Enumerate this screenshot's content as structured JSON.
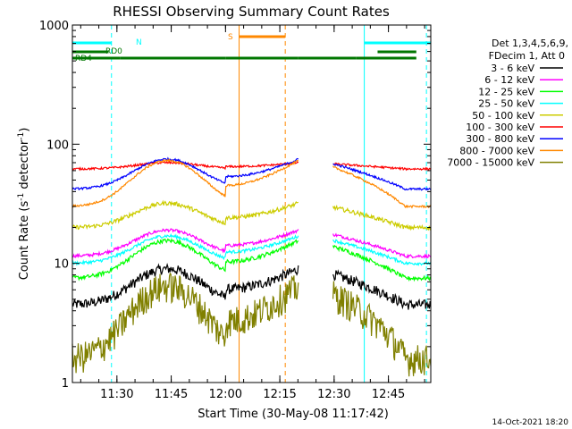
{
  "chart_data": {
    "type": "line",
    "title": "RHESSI Observing Summary Count Rates",
    "xlabel": "Start Time (30-May-08 11:17:42)",
    "ylabel_main": "Count Rate (s",
    "ylabel_sup1": "-1",
    "ylabel_mid": " detector",
    "ylabel_sup2": "-1",
    "ylabel_end": ")",
    "y_scale": "log",
    "ylim": [
      1,
      1000
    ],
    "xlim": [
      "11:17:42",
      "12:56:42"
    ],
    "x_ticks": [
      "11:30",
      "11:45",
      "12:00",
      "12:15",
      "12:30",
      "12:45"
    ],
    "y_ticks": [
      "1",
      "10",
      "100",
      "1000"
    ],
    "grid": false,
    "legend": {
      "position": "right",
      "header": [
        "Det 1,3,4,5,6,9,",
        "FDecim 1, Att 0"
      ]
    },
    "series": [
      {
        "name": "3 - 6 keV",
        "color": "#000000",
        "night_level": 4.5,
        "peak_level": 9.0,
        "noise": 0.1
      },
      {
        "name": "6 - 12 keV",
        "color": "#ff00ff",
        "night_level": 11.5,
        "peak_level": 19.0,
        "noise": 0.03
      },
      {
        "name": "12 - 25 keV",
        "color": "#00ff00",
        "night_level": 7.5,
        "peak_level": 15.5,
        "noise": 0.04
      },
      {
        "name": "25 - 50 keV",
        "color": "#00ffff",
        "night_level": 10.0,
        "peak_level": 17.0,
        "noise": 0.03
      },
      {
        "name": "50 - 100 keV",
        "color": "#cccc00",
        "night_level": 20.0,
        "peak_level": 32.0,
        "noise": 0.04
      },
      {
        "name": "100 - 300 keV",
        "color": "#ff0000",
        "night_level": 62.0,
        "peak_level": 70.0,
        "noise": 0.02
      },
      {
        "name": "300 - 800 keV",
        "color": "#0000ff",
        "night_level": 42.0,
        "peak_level": 75.0,
        "noise": 0.02
      },
      {
        "name": "800 - 7000 keV",
        "color": "#ff8800",
        "night_level": 30.0,
        "peak_level": 73.0,
        "noise": 0.02
      },
      {
        "name": "7000 - 15000 keV",
        "color": "#808000",
        "night_level": 1.6,
        "peak_level": 6.5,
        "noise": 0.3
      }
    ],
    "data_gaps": [
      [
        "12:20:12",
        "12:29:42"
      ]
    ],
    "segment_breaks": [
      "11:27:42",
      "12:00:00",
      "12:20:12",
      "12:29:42",
      "12:42:00"
    ],
    "flags": {
      "N_label": "N",
      "S_label": "S",
      "RD0_label": "RD0",
      "RD4_label": "RD4",
      "night_color": "#00ffff",
      "saa_color": "#ff8800",
      "decim_color": "#007700",
      "night_intervals": [
        [
          "11:17:42",
          "11:28:30"
        ],
        [
          "12:38:20",
          "12:56:42"
        ]
      ],
      "saa_intervals": [
        [
          "12:03:45",
          "12:16:30"
        ]
      ],
      "rd0_intervals": [
        [
          "11:17:42",
          "11:27:42"
        ],
        [
          "12:42:00",
          "12:52:42"
        ]
      ],
      "rd4_intervals": [
        [
          "11:17:42",
          "11:31:00"
        ],
        [
          "11:31:00",
          "12:00:00"
        ],
        [
          "12:00:00",
          "12:20:00"
        ],
        [
          "12:20:00",
          "12:36:00"
        ],
        [
          "12:36:00",
          "12:52:42"
        ]
      ]
    },
    "vertical_markers": [
      {
        "time": "11:17:42",
        "color": "#00ffff",
        "style": "solid"
      },
      {
        "time": "11:28:30",
        "color": "#00ffff",
        "style": "dashed"
      },
      {
        "time": "12:03:45",
        "color": "#ff8800",
        "style": "solid"
      },
      {
        "time": "12:16:30",
        "color": "#ff8800",
        "style": "dashed"
      },
      {
        "time": "12:38:20",
        "color": "#00ffff",
        "style": "solid"
      },
      {
        "time": "12:55:30",
        "color": "#00ffff",
        "style": "dashed"
      }
    ]
  },
  "footer_date": "14-Oct-2021 18:20"
}
